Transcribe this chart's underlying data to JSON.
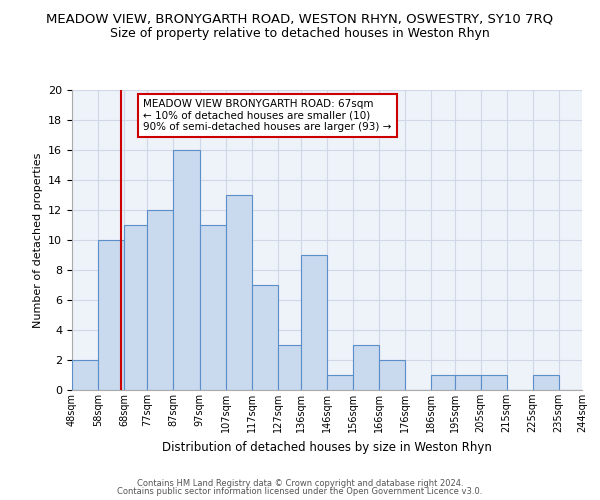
{
  "title": "MEADOW VIEW, BRONYGARTH ROAD, WESTON RHYN, OSWESTRY, SY10 7RQ",
  "subtitle": "Size of property relative to detached houses in Weston Rhyn",
  "xlabel": "Distribution of detached houses by size in Weston Rhyn",
  "ylabel": "Number of detached properties",
  "bin_edges": [
    48,
    58,
    68,
    77,
    87,
    97,
    107,
    117,
    127,
    136,
    146,
    156,
    166,
    176,
    186,
    195,
    205,
    215,
    225,
    235,
    244
  ],
  "counts": [
    2,
    10,
    11,
    12,
    16,
    11,
    13,
    7,
    3,
    9,
    1,
    3,
    2,
    0,
    1,
    1,
    1,
    0,
    1,
    0
  ],
  "tick_labels": [
    "48sqm",
    "58sqm",
    "68sqm",
    "77sqm",
    "87sqm",
    "97sqm",
    "107sqm",
    "117sqm",
    "127sqm",
    "136sqm",
    "146sqm",
    "156sqm",
    "166sqm",
    "176sqm",
    "186sqm",
    "195sqm",
    "205sqm",
    "215sqm",
    "225sqm",
    "235sqm",
    "244sqm"
  ],
  "bar_color": "#c9d9ee",
  "bar_edge_color": "#5b8fc9",
  "vline_x": 67,
  "vline_color": "#cc0000",
  "ylim": [
    0,
    20
  ],
  "yticks": [
    0,
    2,
    4,
    6,
    8,
    10,
    12,
    14,
    16,
    18,
    20
  ],
  "annotation_lines": [
    "MEADOW VIEW BRONYGARTH ROAD: 67sqm",
    "← 10% of detached houses are smaller (10)",
    "90% of semi-detached houses are larger (93) →"
  ],
  "footer_lines": [
    "Contains HM Land Registry data © Crown copyright and database right 2024.",
    "Contains public sector information licensed under the Open Government Licence v3.0."
  ],
  "grid_color": "#d0d8e8",
  "background_color": "#eef2f9"
}
